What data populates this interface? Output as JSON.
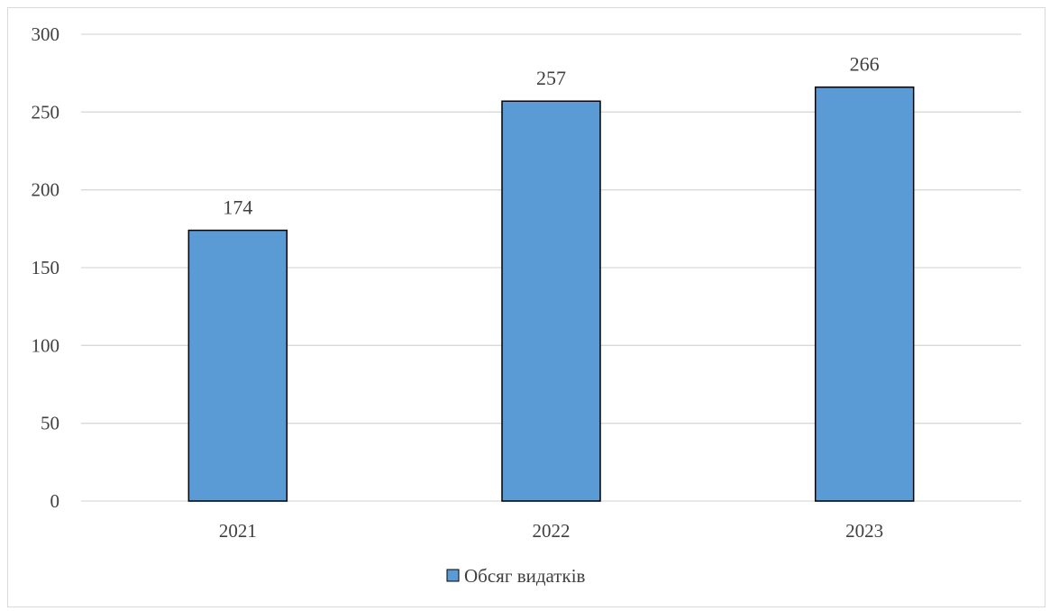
{
  "chart_data": {
    "type": "bar",
    "categories": [
      "2021",
      "2022",
      "2023"
    ],
    "series": [
      {
        "name": "Обсяг видатків",
        "values": [
          174,
          257,
          266
        ]
      }
    ],
    "data_labels": [
      "174",
      "257",
      "266"
    ],
    "y_ticks": [
      "0",
      "50",
      "100",
      "150",
      "200",
      "250",
      "300"
    ],
    "ylim": [
      0,
      300
    ],
    "grid": true,
    "legend_position": "bottom",
    "bar_color": "#5b9bd5",
    "bar_border_color": "#000000",
    "grid_color": "#d9d9d9"
  }
}
